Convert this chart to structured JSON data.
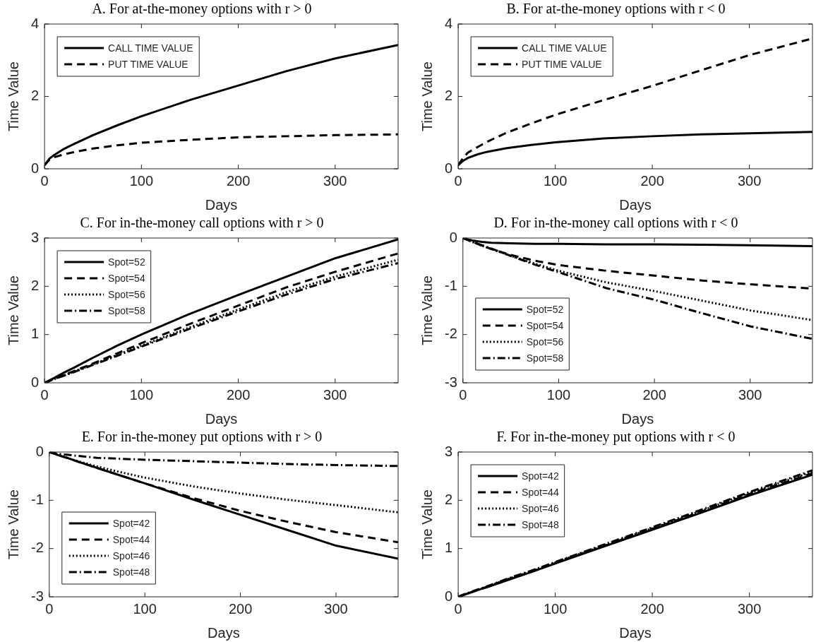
{
  "chart_data": [
    {
      "type": "line",
      "title": "A. For at-the-money options with r > 0",
      "xlabel": "Days",
      "ylabel": "Time Value",
      "x": [
        0,
        5,
        10,
        20,
        30,
        50,
        75,
        100,
        150,
        200,
        250,
        300,
        365
      ],
      "xlim": [
        0,
        365
      ],
      "xticks": [
        0,
        100,
        200,
        300
      ],
      "ylim": [
        0,
        4
      ],
      "yticks": [
        0,
        2,
        4
      ],
      "legend": "top left",
      "series": [
        {
          "name": "CALL TIME VALUE",
          "color": "#000000",
          "line_style": "solid",
          "values": [
            0.1,
            0.28,
            0.38,
            0.55,
            0.68,
            0.93,
            1.2,
            1.45,
            1.9,
            2.3,
            2.7,
            3.05,
            3.42
          ]
        },
        {
          "name": "PUT TIME VALUE",
          "color": "#000000",
          "line_style": "dashed",
          "values": [
            0.1,
            0.25,
            0.32,
            0.4,
            0.46,
            0.56,
            0.65,
            0.72,
            0.8,
            0.87,
            0.9,
            0.93,
            0.95
          ]
        }
      ]
    },
    {
      "type": "line",
      "title": "B. For at-the-money options with r < 0",
      "xlabel": "Days",
      "ylabel": "Time Value",
      "x": [
        0,
        5,
        10,
        20,
        30,
        50,
        75,
        100,
        150,
        200,
        250,
        300,
        365
      ],
      "xlim": [
        0,
        365
      ],
      "xticks": [
        0,
        100,
        200,
        300
      ],
      "ylim": [
        0,
        4
      ],
      "yticks": [
        0,
        2,
        4
      ],
      "legend": "top left",
      "series": [
        {
          "name": "CALL TIME VALUE",
          "color": "#000000",
          "line_style": "solid",
          "values": [
            0.1,
            0.22,
            0.3,
            0.4,
            0.47,
            0.57,
            0.66,
            0.73,
            0.84,
            0.9,
            0.95,
            0.98,
            1.02
          ]
        },
        {
          "name": "PUT TIME VALUE",
          "color": "#000000",
          "line_style": "dashed",
          "values": [
            0.1,
            0.3,
            0.45,
            0.6,
            0.75,
            1.0,
            1.25,
            1.49,
            1.9,
            2.29,
            2.72,
            3.14,
            3.6
          ]
        }
      ]
    },
    {
      "type": "line",
      "title": "C. For in-the-money call options with r > 0",
      "xlabel": "Days",
      "ylabel": "Time Value",
      "x": [
        0,
        5,
        10,
        20,
        30,
        50,
        75,
        100,
        150,
        200,
        250,
        300,
        365
      ],
      "xlim": [
        0,
        365
      ],
      "xticks": [
        0,
        100,
        200,
        300
      ],
      "ylim": [
        0,
        3
      ],
      "yticks": [
        0,
        1,
        2,
        3
      ],
      "legend": "top left",
      "series": [
        {
          "name": "Spot=52",
          "color": "#000000",
          "line_style": "solid",
          "values": [
            0,
            0.05,
            0.1,
            0.21,
            0.31,
            0.52,
            0.77,
            1.0,
            1.43,
            1.82,
            2.2,
            2.58,
            2.97
          ]
        },
        {
          "name": "Spot=54",
          "color": "#000000",
          "line_style": "dashed",
          "values": [
            0,
            0.04,
            0.08,
            0.16,
            0.24,
            0.4,
            0.61,
            0.82,
            1.22,
            1.6,
            1.98,
            2.3,
            2.68
          ]
        },
        {
          "name": "Spot=56",
          "color": "#000000",
          "line_style": "dotted",
          "values": [
            0,
            0.04,
            0.08,
            0.15,
            0.23,
            0.38,
            0.58,
            0.77,
            1.15,
            1.52,
            1.88,
            2.2,
            2.55
          ]
        },
        {
          "name": "Spot=58",
          "color": "#000000",
          "line_style": "dashdot",
          "values": [
            0,
            0.04,
            0.08,
            0.15,
            0.22,
            0.37,
            0.56,
            0.75,
            1.12,
            1.48,
            1.83,
            2.15,
            2.48
          ]
        }
      ]
    },
    {
      "type": "line",
      "title": "D. For in-the-money call options with r < 0",
      "xlabel": "Days",
      "ylabel": "Time Value",
      "x": [
        0,
        5,
        10,
        20,
        30,
        50,
        75,
        100,
        150,
        200,
        250,
        300,
        365
      ],
      "xlim": [
        0,
        365
      ],
      "xticks": [
        0,
        100,
        200,
        300
      ],
      "ylim": [
        -3,
        0
      ],
      "yticks": [
        -3,
        -2,
        -1,
        0
      ],
      "legend": "bottom left",
      "series": [
        {
          "name": "Spot=52",
          "color": "#000000",
          "line_style": "solid",
          "values": [
            0,
            -0.03,
            -0.05,
            -0.08,
            -0.1,
            -0.11,
            -0.12,
            -0.12,
            -0.13,
            -0.13,
            -0.14,
            -0.15,
            -0.17
          ]
        },
        {
          "name": "Spot=54",
          "color": "#000000",
          "line_style": "dashed",
          "values": [
            0,
            -0.04,
            -0.08,
            -0.16,
            -0.23,
            -0.35,
            -0.47,
            -0.56,
            -0.68,
            -0.78,
            -0.88,
            -0.96,
            -1.05
          ]
        },
        {
          "name": "Spot=56",
          "color": "#000000",
          "line_style": "dotted",
          "values": [
            0,
            -0.04,
            -0.08,
            -0.16,
            -0.23,
            -0.37,
            -0.53,
            -0.68,
            -0.92,
            -1.1,
            -1.3,
            -1.5,
            -1.7
          ]
        },
        {
          "name": "Spot=58",
          "color": "#000000",
          "line_style": "dashdot",
          "values": [
            0,
            -0.04,
            -0.08,
            -0.15,
            -0.22,
            -0.37,
            -0.55,
            -0.71,
            -1.04,
            -1.28,
            -1.56,
            -1.83,
            -2.09
          ]
        }
      ]
    },
    {
      "type": "line",
      "title": "E. For in-the-money put options with r > 0",
      "xlabel": "Days",
      "ylabel": "Time Value",
      "x": [
        0,
        5,
        10,
        20,
        30,
        50,
        75,
        100,
        150,
        200,
        250,
        300,
        365
      ],
      "xlim": [
        0,
        365
      ],
      "xticks": [
        0,
        100,
        200,
        300
      ],
      "ylim": [
        -3,
        0
      ],
      "yticks": [
        -3,
        -2,
        -1,
        0
      ],
      "legend": "bottom left",
      "series": [
        {
          "name": "Spot=42",
          "color": "#000000",
          "line_style": "solid",
          "values": [
            0,
            -0.03,
            -0.07,
            -0.13,
            -0.2,
            -0.33,
            -0.49,
            -0.65,
            -0.98,
            -1.3,
            -1.62,
            -1.94,
            -2.21
          ]
        },
        {
          "name": "Spot=44",
          "color": "#000000",
          "line_style": "dashed",
          "values": [
            0,
            -0.03,
            -0.07,
            -0.13,
            -0.2,
            -0.33,
            -0.49,
            -0.65,
            -0.95,
            -1.22,
            -1.45,
            -1.66,
            -1.87
          ]
        },
        {
          "name": "Spot=46",
          "color": "#000000",
          "line_style": "dotted",
          "values": [
            0,
            -0.03,
            -0.06,
            -0.13,
            -0.19,
            -0.3,
            -0.42,
            -0.53,
            -0.71,
            -0.86,
            -0.99,
            -1.1,
            -1.25
          ]
        },
        {
          "name": "Spot=48",
          "color": "#000000",
          "line_style": "dashdot",
          "values": [
            0,
            -0.02,
            -0.04,
            -0.06,
            -0.08,
            -0.12,
            -0.14,
            -0.16,
            -0.19,
            -0.22,
            -0.25,
            -0.27,
            -0.29
          ]
        }
      ]
    },
    {
      "type": "line",
      "title": "F. For in-the-money put options with r < 0",
      "xlabel": "Days",
      "ylabel": "Time Value",
      "x": [
        0,
        5,
        10,
        20,
        30,
        50,
        75,
        100,
        150,
        200,
        250,
        300,
        365
      ],
      "xlim": [
        0,
        365
      ],
      "xticks": [
        0,
        100,
        200,
        300
      ],
      "ylim": [
        0,
        3
      ],
      "yticks": [
        0,
        1,
        2,
        3
      ],
      "legend": "top left",
      "series": [
        {
          "name": "Spot=42",
          "color": "#000000",
          "line_style": "solid",
          "values": [
            0,
            0.03,
            0.07,
            0.14,
            0.2,
            0.34,
            0.51,
            0.69,
            1.04,
            1.39,
            1.74,
            2.1,
            2.53
          ]
        },
        {
          "name": "Spot=44",
          "color": "#000000",
          "line_style": "dashed",
          "values": [
            0,
            0.04,
            0.07,
            0.14,
            0.21,
            0.35,
            0.52,
            0.7,
            1.05,
            1.41,
            1.76,
            2.13,
            2.56
          ]
        },
        {
          "name": "Spot=46",
          "color": "#000000",
          "line_style": "dotted",
          "values": [
            0,
            0.04,
            0.07,
            0.14,
            0.21,
            0.36,
            0.53,
            0.71,
            1.07,
            1.42,
            1.78,
            2.15,
            2.59
          ]
        },
        {
          "name": "Spot=48",
          "color": "#000000",
          "line_style": "dashdot",
          "values": [
            0,
            0.04,
            0.08,
            0.15,
            0.22,
            0.37,
            0.54,
            0.72,
            1.08,
            1.44,
            1.8,
            2.17,
            2.62
          ]
        }
      ]
    }
  ]
}
